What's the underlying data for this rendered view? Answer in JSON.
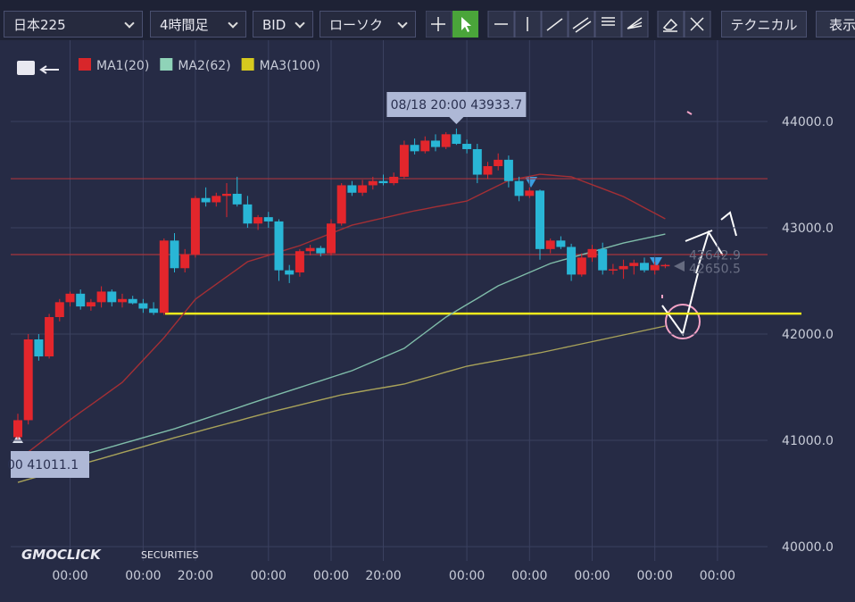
{
  "toolbar": {
    "symbol": "日本225",
    "timeframe": "4時間足",
    "side": "BID",
    "style": "ローソク",
    "technical": "テクニカル",
    "display": "表示"
  },
  "chart_data": {
    "type": "candlestick",
    "categories": [
      null,
      null,
      null,
      null,
      null,
      "00:00",
      null,
      null,
      null,
      null,
      null,
      null,
      "00:00",
      null,
      null,
      null,
      null,
      "20:00",
      null,
      null,
      null,
      null,
      null,
      null,
      "00:00",
      null,
      null,
      null,
      null,
      null,
      "00:00",
      null,
      null,
      null,
      null,
      "20:00",
      null,
      null,
      null,
      null,
      null,
      null,
      null,
      "00:00",
      null,
      null,
      null,
      null,
      null,
      "00:00",
      null,
      null,
      null,
      null,
      null,
      "00:00",
      null,
      null,
      null,
      null,
      null,
      "00:00",
      null,
      null,
      null,
      null,
      null,
      "00:00"
    ],
    "open": [
      41030,
      41190,
      41950,
      41790,
      42160,
      42300,
      42380,
      42260,
      42300,
      42400,
      42300,
      42330,
      42290,
      42240,
      42200,
      42880,
      42620,
      42750,
      43280,
      43240,
      43300,
      43320,
      43220,
      43040,
      43100,
      43060,
      42600,
      42580,
      42780,
      42810,
      42760,
      43040,
      43400,
      43330,
      43400,
      43440,
      43420,
      43480,
      43780,
      43720,
      43820,
      43760,
      43880,
      43790,
      43740,
      43500,
      43580,
      43640,
      43440,
      43300,
      43350,
      42800,
      42880,
      42820,
      42560,
      42720,
      42800,
      42600,
      42610,
      42640,
      42670,
      42600,
      42650,
      null,
      null,
      null,
      null,
      null
    ],
    "high": [
      41250,
      42000,
      42000,
      42190,
      42330,
      42400,
      42420,
      42330,
      42450,
      42420,
      42380,
      42360,
      42330,
      42300,
      42900,
      42950,
      42800,
      43300,
      43380,
      43330,
      43420,
      43480,
      43300,
      43120,
      43150,
      43080,
      42650,
      42800,
      42840,
      42830,
      43080,
      43420,
      43440,
      43450,
      43480,
      43500,
      43520,
      43820,
      43840,
      43860,
      43880,
      43900,
      43933.7,
      43830,
      43790,
      43620,
      43700,
      43680,
      43480,
      43380,
      43360,
      42900,
      42920,
      42850,
      42760,
      42840,
      42860,
      42660,
      42700,
      42700,
      42720,
      42680,
      42660,
      null,
      null,
      null,
      null,
      null
    ],
    "low": [
      41011.1,
      41150,
      41750,
      41770,
      42120,
      42260,
      42230,
      42220,
      42250,
      42260,
      42250,
      42280,
      42200,
      42180,
      42180,
      42580,
      42580,
      42720,
      43200,
      43200,
      43100,
      43200,
      43000,
      42980,
      43000,
      42500,
      42480,
      42540,
      42740,
      42730,
      42740,
      43020,
      43300,
      43300,
      43360,
      43400,
      43400,
      43460,
      43690,
      43700,
      43720,
      43740,
      43780,
      43700,
      43420,
      43460,
      43540,
      43380,
      43250,
      43280,
      42700,
      42760,
      42800,
      42500,
      42540,
      42680,
      42560,
      42560,
      42520,
      42560,
      42580,
      42560,
      42620,
      null,
      null,
      null,
      null,
      null
    ],
    "close": [
      41190,
      41950,
      41790,
      42160,
      42300,
      42380,
      42260,
      42300,
      42400,
      42300,
      42330,
      42290,
      42240,
      42200,
      42880,
      42620,
      42750,
      43280,
      43240,
      43300,
      43320,
      43220,
      43040,
      43100,
      43060,
      42600,
      42560,
      42780,
      42810,
      42760,
      43040,
      43400,
      43330,
      43400,
      43440,
      43420,
      43480,
      43780,
      43720,
      43820,
      43760,
      43880,
      43790,
      43740,
      43500,
      43580,
      43640,
      43440,
      43300,
      43350,
      42800,
      42880,
      42820,
      42560,
      42720,
      42800,
      42600,
      42610,
      42640,
      42670,
      42600,
      42650,
      42650.5,
      null,
      null,
      null,
      null,
      null
    ],
    "up_color": "#e3262c",
    "down_color": "#29b6d6",
    "series": [
      {
        "name": "MA1(20)",
        "color": "#a32f35",
        "legend_color": "#d8262a",
        "values": [
          40815,
          40891,
          40966,
          41042,
          41117,
          41193,
          41264,
          41334,
          41405,
          41475,
          41546,
          41651,
          41756,
          41861,
          41966,
          42087,
          42207,
          42328,
          42399,
          42469,
          42540,
          42610,
          42681,
          42711,
          42741,
          42772,
          42802,
          42832,
          42871,
          42909,
          42948,
          42986,
          43025,
          43047,
          43070,
          43092,
          43115,
          43137,
          43160,
          43178,
          43197,
          43215,
          43234,
          43252,
          43300,
          43349,
          43397,
          43445,
          43465,
          43484,
          43504,
          43496,
          43487,
          43479,
          43442,
          43405,
          43368,
          43331,
          43294,
          43242,
          43189,
          43137,
          43084,
          null,
          null,
          null,
          null,
          null
        ]
      },
      {
        "name": "MA2(62)",
        "color": "#7fbca9",
        "legend_color": "#8fd3b8",
        "values": [
          40689,
          40717,
          40745,
          40773,
          40801,
          40829,
          40857,
          40885,
          40913,
          40941,
          40969,
          40997,
          41025,
          41053,
          41081,
          41109,
          41142,
          41174,
          41207,
          41240,
          41273,
          41305,
          41338,
          41371,
          41403,
          41435,
          41466,
          41498,
          41530,
          41561,
          41593,
          41625,
          41656,
          41698,
          41740,
          41782,
          41824,
          41866,
          41940,
          42013,
          42087,
          42160,
          42219,
          42278,
          42336,
          42395,
          42454,
          42496,
          42538,
          42580,
          42622,
          42664,
          42692,
          42719,
          42747,
          42774,
          42802,
          42830,
          42857,
          42878,
          42899,
          42920,
          42941,
          null,
          null,
          null,
          null,
          null
        ]
      },
      {
        "name": "MA3(100)",
        "color": "#a8a25a",
        "legend_color": "#d6c91e",
        "values": [
          40605,
          40633,
          40661,
          40689,
          40717,
          40745,
          40773,
          40801,
          40829,
          40857,
          40885,
          40913,
          40941,
          40969,
          40997,
          41025,
          41051,
          41077,
          41104,
          41130,
          41156,
          41182,
          41209,
          41235,
          41261,
          41285,
          41309,
          41333,
          41357,
          41381,
          41405,
          41429,
          41446,
          41463,
          41480,
          41496,
          41513,
          41530,
          41558,
          41586,
          41614,
          41642,
          41670,
          41698,
          41716,
          41734,
          41752,
          41770,
          41788,
          41806,
          41824,
          41845,
          41866,
          41887,
          41908,
          41929,
          41950,
          41971,
          41992,
          42013,
          42034,
          42055,
          42076,
          null,
          null,
          null,
          null,
          null
        ]
      }
    ],
    "ylim": [
      39866,
      44765
    ],
    "yticks": [
      {
        "value": 40000,
        "label": "40000.0"
      },
      {
        "value": 41000,
        "label": "41000.0"
      },
      {
        "value": 42000,
        "label": "42000.0"
      },
      {
        "value": 43000,
        "label": "43000.0"
      },
      {
        "value": 44000,
        "label": "44000.0"
      }
    ],
    "grid": true,
    "levels": [
      {
        "value": 43462,
        "color": "#a8353d"
      },
      {
        "value": 42748,
        "color": "#a8353d"
      },
      {
        "value": 42193,
        "color": "#f2ea1c"
      }
    ],
    "tooltip": "08/18 20:00 43933.7",
    "low_label": "00 41011.1",
    "price_labels": [
      42642.9,
      42650.5
    ],
    "watermark": "GMOCLICK",
    "watermark_sub": "SECURITIES"
  }
}
